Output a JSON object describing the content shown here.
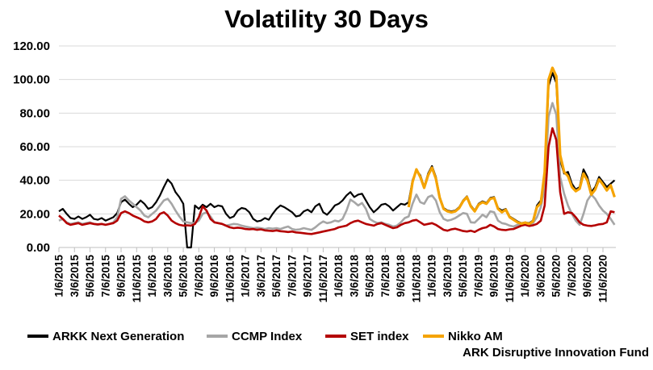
{
  "title": "Volatility 30 Days",
  "colors": {
    "gridline": "#D9D9D9",
    "axis": "#BFBFBF",
    "text": "#000000",
    "background": "#FFFFFF"
  },
  "legend": {
    "items": [
      {
        "label": "ARKK Next Generation"
      },
      {
        "label": "CCMP Index"
      },
      {
        "label": "SET index"
      },
      {
        "label": "Nikko AM"
      }
    ],
    "nikko_line2": "ARK Disruptive Innovation Fund"
  },
  "chart_data": {
    "type": "line",
    "title": "Volatility 30 Days",
    "xlabel": "",
    "ylabel": "",
    "ylim": [
      0,
      120
    ],
    "grid": "horizontal",
    "legend_position": "bottom",
    "y_ticks": [
      "120.00",
      "100.00",
      "80.00",
      "60.00",
      "40.00",
      "20.00",
      "0.00"
    ],
    "x_tick_labels": [
      "1/6/2015",
      "3/6/2015",
      "5/6/2015",
      "7/6/2015",
      "9/6/2015",
      "11/6/2015",
      "1/6/2016",
      "3/6/2016",
      "5/6/2016",
      "7/6/2016",
      "9/6/2016",
      "11/6/2016",
      "1/6/2017",
      "3/6/2017",
      "5/6/2017",
      "7/6/2017",
      "9/6/2017",
      "11/6/2017",
      "1/6/2018",
      "3/6/2018",
      "5/6/2018",
      "7/6/2018",
      "9/6/2018",
      "11/6/2018",
      "1/6/2019",
      "3/6/2019",
      "5/6/2019",
      "7/6/2019",
      "9/6/2019",
      "11/6/2019",
      "1/6/2020",
      "3/6/2020",
      "5/6/2020",
      "7/6/2020",
      "9/6/2020",
      "11/6/2020"
    ],
    "x_unit": "months since 1/6/2015, values sampled every half month",
    "series": [
      {
        "id": "arkk",
        "name": "ARKK Next Generation",
        "color": "#000000",
        "x_start": 0,
        "x_step": 0.5,
        "values": [
          21.5,
          23,
          20,
          17.5,
          17,
          18.5,
          17,
          18,
          19.5,
          17,
          16.5,
          17.5,
          16,
          17,
          18,
          20.5,
          27,
          28.5,
          26,
          24,
          25.5,
          28,
          26,
          23,
          24,
          27,
          31,
          36,
          40.5,
          38,
          33,
          30,
          26,
          0,
          0,
          25,
          23,
          25.5,
          24,
          26,
          24,
          25,
          24.5,
          20,
          17.5,
          18.5,
          22,
          23.5,
          23,
          21,
          17,
          15.5,
          16,
          17.5,
          16.5,
          20,
          23,
          25,
          24,
          22.5,
          21,
          18.5,
          19,
          21.5,
          22.5,
          21,
          24.5,
          26,
          21,
          19.5,
          22,
          25,
          26,
          28,
          31,
          33,
          30,
          31.5,
          32,
          28,
          24,
          21,
          23,
          25.5,
          26,
          24.5,
          22,
          24,
          26,
          25.5,
          27,
          40,
          46,
          43,
          36,
          44,
          48.5,
          42,
          30,
          23.5,
          22,
          21.5,
          22,
          24,
          28,
          30.5,
          25,
          22,
          26,
          27.5,
          26.5,
          29.5,
          30,
          23.5,
          22,
          23,
          18.5,
          17,
          15.5,
          14.5,
          15,
          14.5,
          16,
          25,
          28,
          42,
          96,
          104,
          98,
          52,
          44,
          45,
          38,
          34.5,
          36,
          46.5,
          42,
          33,
          36,
          42,
          39,
          36,
          38,
          40
        ]
      },
      {
        "id": "ccmp",
        "name": "CCMP Index",
        "color": "#A6A6A6",
        "x_start": 0,
        "x_step": 0.5,
        "values": [
          16,
          17,
          15,
          14,
          14.5,
          15,
          14,
          14.5,
          15,
          14,
          13.5,
          14,
          13.5,
          14,
          15,
          18,
          29,
          30.5,
          28,
          26,
          24,
          22,
          19,
          18,
          20,
          22,
          25,
          28,
          29,
          26,
          22,
          18.5,
          15.5,
          15,
          14.5,
          14.5,
          16,
          20,
          21,
          18.5,
          15,
          14.5,
          14,
          13,
          13.5,
          14,
          13.8,
          13,
          12.5,
          12,
          11.5,
          11.8,
          11.5,
          11,
          11.5,
          11.2,
          11.5,
          11,
          11.8,
          12.5,
          11,
          10.5,
          10.8,
          11.5,
          11,
          10.5,
          12,
          14,
          15.5,
          14.5,
          15,
          16,
          15.5,
          17,
          22,
          28.5,
          27,
          25,
          26.5,
          23,
          17,
          15.5,
          14.5,
          15,
          14,
          13.5,
          12.5,
          13,
          15,
          17.5,
          18.5,
          26,
          31.5,
          27,
          26,
          30,
          31,
          28,
          21,
          17,
          16,
          16.5,
          17.5,
          19,
          20.5,
          20,
          15,
          14.8,
          17,
          19.5,
          18,
          21.5,
          21,
          16,
          14.5,
          14,
          13,
          12.5,
          13.5,
          13,
          14,
          13.5,
          14.5,
          18,
          24,
          35,
          78,
          86,
          79,
          42,
          32,
          25,
          20,
          16,
          13.5,
          20,
          28,
          31.5,
          29,
          25,
          22,
          20,
          17,
          13.5
        ]
      },
      {
        "id": "set",
        "name": "SET index",
        "color": "#B40000",
        "x_start": 0,
        "x_step": 0.5,
        "values": [
          19,
          17,
          14.5,
          13.5,
          14,
          14.5,
          13.5,
          14,
          14.5,
          14,
          13.8,
          14,
          13.5,
          14,
          14.5,
          16,
          20.5,
          21.5,
          20.5,
          19,
          18,
          17,
          15.5,
          15,
          15.5,
          17,
          20,
          21,
          19,
          16,
          14.5,
          13.5,
          13,
          13.2,
          13,
          14,
          18,
          24.5,
          22,
          17,
          15,
          14.5,
          14,
          13,
          12,
          11.5,
          11.8,
          11.5,
          11,
          10.8,
          11,
          10.5,
          10.8,
          10.2,
          10,
          9.8,
          10.2,
          9.7,
          9.5,
          9.2,
          9.5,
          9,
          8.8,
          8.5,
          8.2,
          8,
          8.5,
          9,
          9.5,
          10,
          10.5,
          11,
          12,
          12.5,
          13,
          14.5,
          15.5,
          16,
          15,
          14,
          13.5,
          13,
          14,
          14.5,
          13.5,
          12.5,
          11.5,
          12,
          13.5,
          14.5,
          15,
          16,
          16.4,
          15,
          13.5,
          14,
          14.5,
          13.5,
          12,
          10.5,
          10,
          10.8,
          11.2,
          10.5,
          9.8,
          9.5,
          10,
          9.2,
          10.5,
          11.5,
          12,
          13.5,
          12.5,
          11,
          10.5,
          10.3,
          10.8,
          11,
          12,
          13,
          13.5,
          12.8,
          13.2,
          14,
          16,
          25,
          60,
          71,
          64,
          33,
          20,
          21,
          20.5,
          18,
          15,
          13.5,
          13,
          12.8,
          13.2,
          13.8,
          14,
          15,
          21.5,
          21
        ]
      },
      {
        "id": "nikko",
        "name": "Nikko AM ARK Disruptive Innovation Fund",
        "color": "#F5A300",
        "x_start": 45,
        "x_step": 0.5,
        "values": [
          24,
          39,
          46.5,
          42,
          35.5,
          43,
          47.5,
          41,
          29.5,
          23,
          21.5,
          21,
          21.5,
          23.5,
          27.5,
          30,
          24.5,
          21.5,
          25.5,
          27,
          26,
          29,
          29.5,
          23,
          21,
          22.5,
          18,
          16.5,
          15,
          14.2,
          14.8,
          14,
          15.5,
          24,
          26.5,
          45,
          100,
          107,
          102,
          55,
          45,
          42.5,
          36,
          33.5,
          35,
          44,
          40,
          31.5,
          34.5,
          40.5,
          37.5,
          34,
          37,
          30
        ]
      }
    ]
  }
}
